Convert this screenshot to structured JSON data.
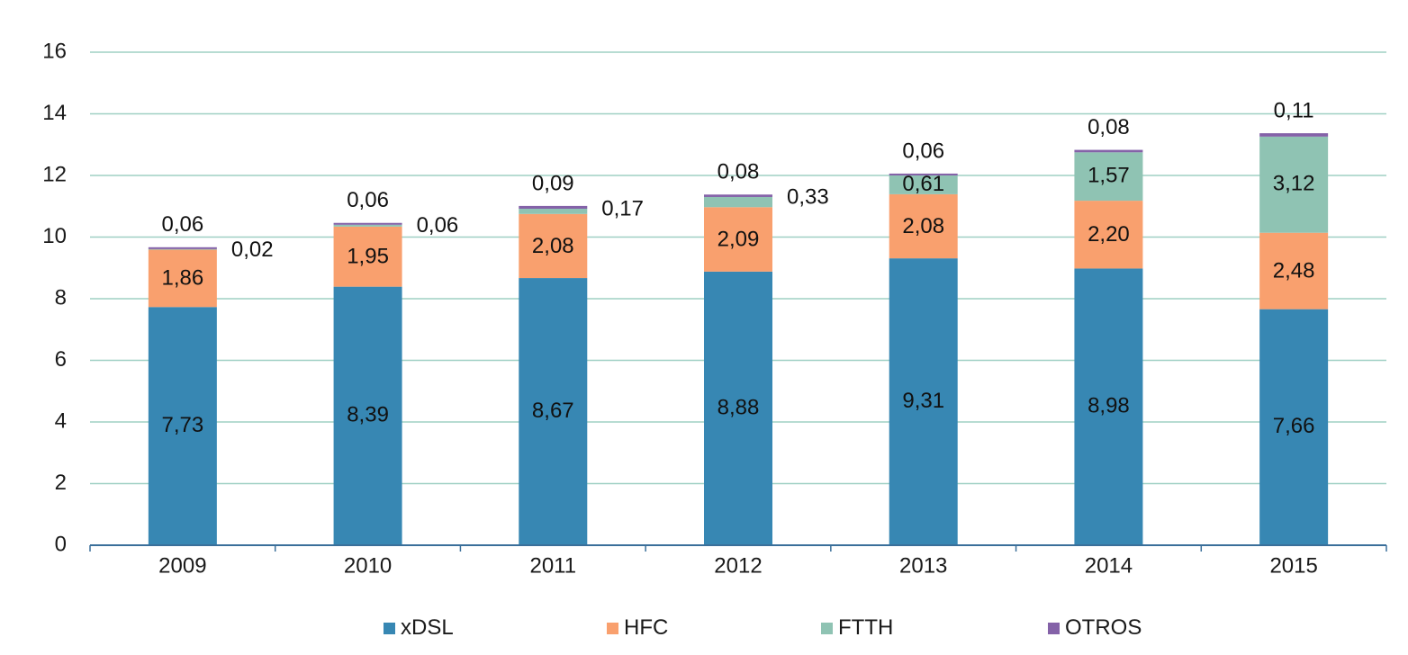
{
  "chart_data": {
    "type": "bar",
    "stacked": true,
    "categories": [
      "2009",
      "2010",
      "2011",
      "2012",
      "2013",
      "2014",
      "2015"
    ],
    "series": [
      {
        "name": "xDSL",
        "color": "#3787b3",
        "values": [
          7.73,
          8.39,
          8.67,
          8.88,
          9.31,
          8.98,
          7.66
        ],
        "labels": [
          "7,73",
          "8,39",
          "8,67",
          "8,88",
          "9,31",
          "8,98",
          "7,66"
        ]
      },
      {
        "name": "HFC",
        "color": "#f9a06e",
        "values": [
          1.86,
          1.95,
          2.08,
          2.09,
          2.08,
          2.2,
          2.48
        ],
        "labels": [
          "1,86",
          "1,95",
          "2,08",
          "2,09",
          "2,08",
          "2,20",
          "2,48"
        ]
      },
      {
        "name": "FTTH",
        "color": "#8fc3b3",
        "values": [
          0.02,
          0.06,
          0.17,
          0.33,
          0.61,
          1.57,
          3.12
        ],
        "labels": [
          "0,02",
          "0,06",
          "0,17",
          "0,33",
          "0,61",
          "1,57",
          "3,12"
        ]
      },
      {
        "name": "OTROS",
        "color": "#8462a8",
        "values": [
          0.06,
          0.06,
          0.09,
          0.08,
          0.06,
          0.08,
          0.11
        ],
        "labels": [
          "0,06",
          "0,06",
          "0,09",
          "0,08",
          "0,06",
          "0,08",
          "0,11"
        ]
      }
    ],
    "ylim": [
      0,
      16
    ],
    "yticks": [
      "0",
      "2",
      "4",
      "6",
      "8",
      "10",
      "12",
      "14",
      "16"
    ],
    "grid": true,
    "legend_position": "bottom",
    "title": "",
    "xlabel": "",
    "ylabel": ""
  }
}
